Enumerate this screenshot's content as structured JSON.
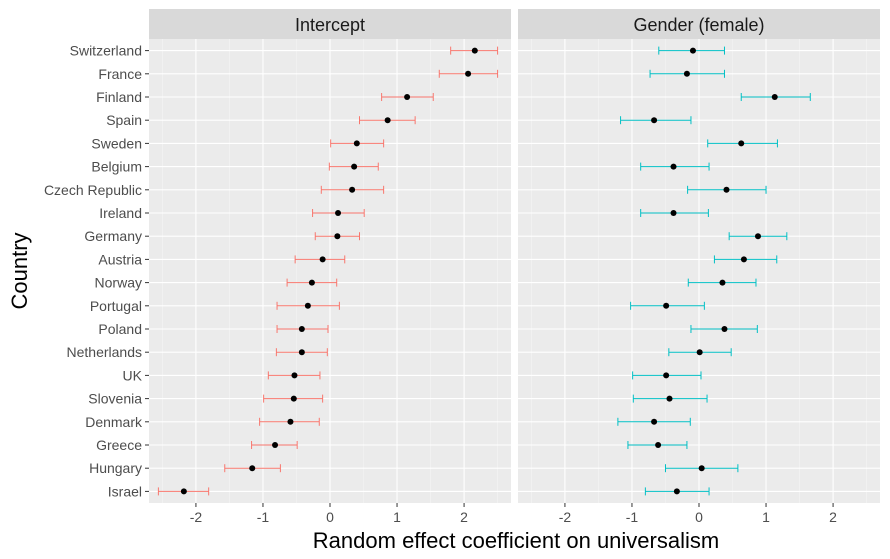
{
  "chart_data": {
    "type": "dot-errorbar",
    "xlabel": "Random effect coefficient on universalism",
    "ylabel": "Country",
    "xlim": [
      -2.7,
      2.7
    ],
    "xticks": [
      -2,
      -1,
      0,
      1,
      2
    ],
    "grid": true,
    "categories": [
      "Switzerland",
      "France",
      "Finland",
      "Spain",
      "Sweden",
      "Belgium",
      "Czech Republic",
      "Ireland",
      "Germany",
      "Austria",
      "Norway",
      "Portugal",
      "Poland",
      "Netherlands",
      "UK",
      "Slovenia",
      "Denmark",
      "Greece",
      "Hungary",
      "Israel"
    ],
    "panels": [
      {
        "name": "Intercept",
        "color": "#F8766D",
        "estimates": [
          2.16,
          2.06,
          1.15,
          0.86,
          0.4,
          0.36,
          0.33,
          0.12,
          0.11,
          -0.11,
          -0.27,
          -0.33,
          -0.42,
          -0.42,
          -0.53,
          -0.54,
          -0.59,
          -0.82,
          -1.16,
          -2.18
        ],
        "lower": [
          1.8,
          1.63,
          0.77,
          0.44,
          0.01,
          -0.01,
          -0.13,
          -0.26,
          -0.22,
          -0.52,
          -0.64,
          -0.79,
          -0.79,
          -0.8,
          -0.92,
          -0.99,
          -1.05,
          -1.17,
          -1.57,
          -2.56
        ],
        "upper": [
          2.5,
          2.5,
          1.54,
          1.27,
          0.8,
          0.72,
          0.8,
          0.51,
          0.44,
          0.22,
          0.1,
          0.14,
          -0.03,
          -0.04,
          -0.15,
          -0.11,
          -0.16,
          -0.49,
          -0.74,
          -1.81
        ]
      },
      {
        "name": "Gender (female)",
        "color": "#00BFC4",
        "estimates": [
          -0.09,
          -0.18,
          1.13,
          -0.67,
          0.63,
          -0.38,
          0.41,
          -0.38,
          0.88,
          0.67,
          0.35,
          -0.49,
          0.38,
          0.01,
          -0.49,
          -0.44,
          -0.67,
          -0.61,
          0.04,
          -0.33
        ],
        "lower": [
          -0.6,
          -0.73,
          0.63,
          -1.17,
          0.13,
          -0.87,
          -0.17,
          -0.87,
          0.45,
          0.23,
          -0.16,
          -1.02,
          -0.12,
          -0.45,
          -0.99,
          -0.98,
          -1.21,
          -1.06,
          -0.5,
          -0.8
        ],
        "upper": [
          0.38,
          0.38,
          1.66,
          -0.12,
          1.17,
          0.15,
          1.0,
          0.14,
          1.31,
          1.16,
          0.85,
          0.08,
          0.87,
          0.48,
          0.03,
          0.12,
          -0.13,
          -0.18,
          0.58,
          0.15
        ]
      }
    ]
  }
}
